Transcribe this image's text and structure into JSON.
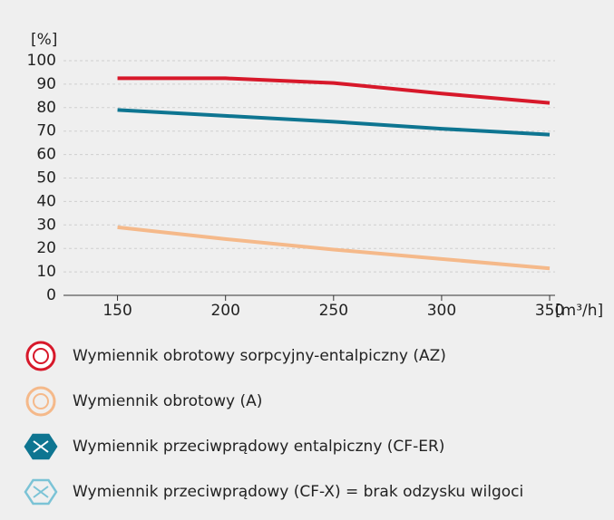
{
  "chart_data": {
    "type": "line",
    "ylabel": "[%]",
    "xlabel": "[m³/h]",
    "x": [
      150,
      200,
      250,
      300,
      350
    ],
    "series": [
      {
        "name": "Wymiennik obrotowy sorpcyjny-entalpiczny (AZ)",
        "color": "#d7182a",
        "values": [
          92.5,
          92.5,
          90.5,
          86,
          82
        ]
      },
      {
        "name": "Wymiennik obrotowy (A)",
        "color": "#f5b98a",
        "values": [
          29,
          24,
          19.5,
          15.5,
          11.5
        ]
      },
      {
        "name": "Wymiennik przeciwprądowy entalpiczny (CF-ER)",
        "color": "#0e7591",
        "values": [
          79,
          76.5,
          74,
          71,
          68.5
        ]
      },
      {
        "name": "Wymiennik przeciwprądowy (CF-X) = brak odzysku wilgoci",
        "color": "#7bc3d6",
        "values": [
          null,
          null,
          null,
          null,
          null
        ]
      }
    ],
    "xlim": [
      125,
      352.5
    ],
    "xticks": [
      150,
      200,
      250,
      300,
      350
    ],
    "ylim": [
      0,
      100
    ],
    "yticks": [
      0,
      10,
      20,
      30,
      40,
      50,
      60,
      70,
      80,
      90,
      100
    ],
    "grid": true
  }
}
